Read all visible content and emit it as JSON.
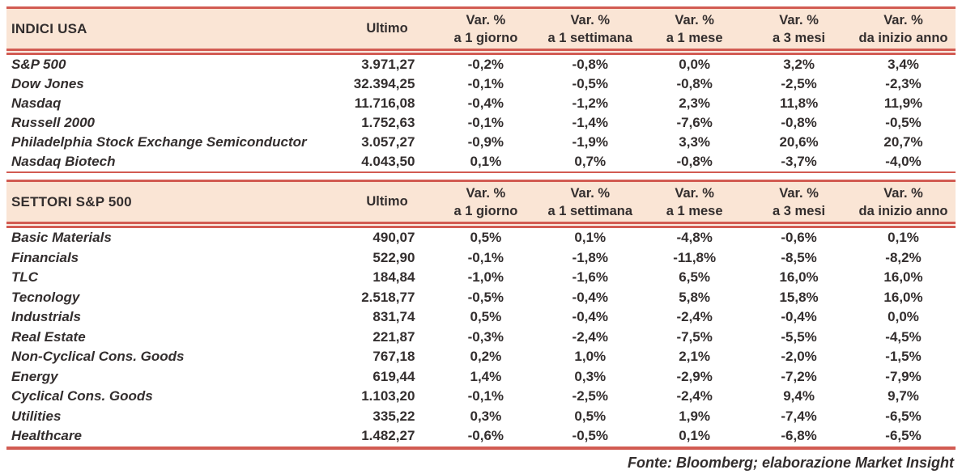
{
  "colors": {
    "header_bg": "#fae5d5",
    "border_red": "#d25b52",
    "text": "#332e2e"
  },
  "footer": {
    "source_note": "Fonte: Bloomberg; elaborazione Market Insight"
  },
  "sections": [
    {
      "title": "INDICI USA",
      "ultimo_label": "Ultimo",
      "var_columns": [
        {
          "top": "Var. %",
          "bottom": "a 1 giorno"
        },
        {
          "top": "Var. %",
          "bottom": "a 1 settimana"
        },
        {
          "top": "Var. %",
          "bottom": "a 1 mese"
        },
        {
          "top": "Var. %",
          "bottom": "a 3 mesi"
        },
        {
          "top": "Var. %",
          "bottom": "da inizio anno"
        }
      ],
      "rows": [
        {
          "name": "S&P 500",
          "ultimo": "3.971,27",
          "vars": [
            "-0,2%",
            "-0,8%",
            "0,0%",
            "3,2%",
            "3,4%"
          ]
        },
        {
          "name": "Dow Jones",
          "ultimo": "32.394,25",
          "vars": [
            "-0,1%",
            "-0,5%",
            "-0,8%",
            "-2,5%",
            "-2,3%"
          ]
        },
        {
          "name": "Nasdaq",
          "ultimo": "11.716,08",
          "vars": [
            "-0,4%",
            "-1,2%",
            "2,3%",
            "11,8%",
            "11,9%"
          ]
        },
        {
          "name": "Russell 2000",
          "ultimo": "1.752,63",
          "vars": [
            "-0,1%",
            "-1,4%",
            "-7,6%",
            "-0,8%",
            "-0,5%"
          ]
        },
        {
          "name": "Philadelphia Stock Exchange Semiconductor",
          "ultimo": "3.057,27",
          "vars": [
            "-0,9%",
            "-1,9%",
            "3,3%",
            "20,6%",
            "20,7%"
          ]
        },
        {
          "name": "Nasdaq Biotech",
          "ultimo": "4.043,50",
          "vars": [
            "0,1%",
            "0,7%",
            "-0,8%",
            "-3,7%",
            "-4,0%"
          ]
        }
      ]
    },
    {
      "title": "SETTORI S&P 500",
      "ultimo_label": "Ultimo",
      "var_columns": [
        {
          "top": "Var. %",
          "bottom": "a 1 giorno"
        },
        {
          "top": "Var. %",
          "bottom": "a 1 settimana"
        },
        {
          "top": "Var. %",
          "bottom": "a 1 mese"
        },
        {
          "top": "Var. %",
          "bottom": "a 3 mesi"
        },
        {
          "top": "Var. %",
          "bottom": "da inizio anno"
        }
      ],
      "rows": [
        {
          "name": "Basic Materials",
          "ultimo": "490,07",
          "vars": [
            "0,5%",
            "0,1%",
            "-4,8%",
            "-0,6%",
            "0,1%"
          ]
        },
        {
          "name": "Financials",
          "ultimo": "522,90",
          "vars": [
            "-0,1%",
            "-1,8%",
            "-11,8%",
            "-8,5%",
            "-8,2%"
          ]
        },
        {
          "name": "TLC",
          "ultimo": "184,84",
          "vars": [
            "-1,0%",
            "-1,6%",
            "6,5%",
            "16,0%",
            "16,0%"
          ]
        },
        {
          "name": "Tecnology",
          "ultimo": "2.518,77",
          "vars": [
            "-0,5%",
            "-0,4%",
            "5,8%",
            "15,8%",
            "16,0%"
          ]
        },
        {
          "name": "Industrials",
          "ultimo": "831,74",
          "vars": [
            "0,5%",
            "-0,4%",
            "-2,4%",
            "-0,4%",
            "0,0%"
          ]
        },
        {
          "name": "Real Estate",
          "ultimo": "221,87",
          "vars": [
            "-0,3%",
            "-2,4%",
            "-7,5%",
            "-5,5%",
            "-4,5%"
          ]
        },
        {
          "name": "Non-Cyclical Cons. Goods",
          "ultimo": "767,18",
          "vars": [
            "0,2%",
            "1,0%",
            "2,1%",
            "-2,0%",
            "-1,5%"
          ]
        },
        {
          "name": "Energy",
          "ultimo": "619,44",
          "vars": [
            "1,4%",
            "0,3%",
            "-2,9%",
            "-7,2%",
            "-7,9%"
          ]
        },
        {
          "name": "Cyclical Cons. Goods",
          "ultimo": "1.103,20",
          "vars": [
            "-0,1%",
            "-2,5%",
            "-2,4%",
            "9,4%",
            "9,7%"
          ]
        },
        {
          "name": "Utilities",
          "ultimo": "335,22",
          "vars": [
            "0,3%",
            "0,5%",
            "1,9%",
            "-7,4%",
            "-6,5%"
          ]
        },
        {
          "name": "Healthcare",
          "ultimo": "1.482,27",
          "vars": [
            "-0,6%",
            "-0,5%",
            "0,1%",
            "-6,8%",
            "-6,5%"
          ]
        }
      ]
    }
  ]
}
